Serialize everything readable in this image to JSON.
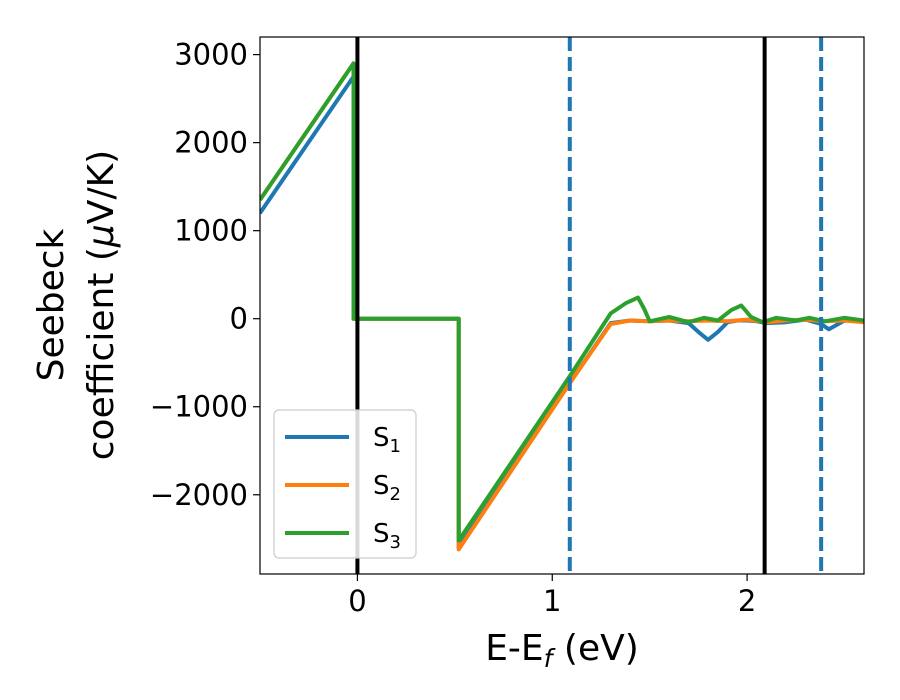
{
  "chart_data": {
    "type": "line",
    "title": "",
    "xlabel": "E-E",
    "xlabel_sub": "f",
    "xlabel_unit": " (eV)",
    "ylabel_line1": "Seebeck",
    "ylabel_line2": "coefficient  (",
    "ylabel_mu": "μ",
    "ylabel_unit": "V/K)",
    "xlim": [
      -0.5,
      2.6
    ],
    "ylim": [
      -2900,
      3200
    ],
    "xticks": [
      0,
      1,
      2
    ],
    "xtick_labels": [
      "0",
      "1",
      "2"
    ],
    "yticks": [
      3000,
      2000,
      1000,
      0,
      -1000,
      -2000
    ],
    "ytick_labels": [
      "3000",
      "2000",
      "1000",
      "0",
      "−1000",
      "−2000"
    ],
    "grid": false,
    "legend_position": "lower-left",
    "vlines": [
      {
        "x": 0.0,
        "style": "solid",
        "color": "#000000"
      },
      {
        "x": 2.09,
        "style": "solid",
        "color": "#000000"
      },
      {
        "x": 1.09,
        "style": "dashed",
        "color": "#1f77b4"
      },
      {
        "x": 2.38,
        "style": "dashed",
        "color": "#1f77b4"
      }
    ],
    "series": [
      {
        "name": "S",
        "sub": "1",
        "color": "#1f77b4",
        "x": [
          -0.5,
          -0.02,
          -0.02,
          0.52,
          0.52,
          1.1,
          1.3,
          1.4,
          1.5,
          1.6,
          1.7,
          1.75,
          1.8,
          1.85,
          1.9,
          1.95,
          2.0,
          2.05,
          2.1,
          2.2,
          2.3,
          2.38,
          2.42,
          2.5,
          2.6
        ],
        "y": [
          1200,
          2750,
          0,
          0,
          -2600,
          -700,
          -50,
          -20,
          -30,
          -20,
          -50,
          -150,
          -240,
          -150,
          -40,
          -20,
          -20,
          -30,
          -50,
          -40,
          -10,
          -60,
          -120,
          -20,
          -30
        ]
      },
      {
        "name": "S",
        "sub": "2",
        "color": "#ff7f0e",
        "x": [
          -0.5,
          -0.02,
          -0.02,
          0.52,
          0.52,
          1.1,
          1.3,
          1.4,
          1.5,
          1.6,
          1.7,
          1.8,
          1.9,
          2.0,
          2.1,
          2.2,
          2.3,
          2.4,
          2.5,
          2.6
        ],
        "y": [
          1350,
          2900,
          0,
          0,
          -2620,
          -700,
          -60,
          -20,
          -30,
          -20,
          -30,
          -20,
          -30,
          -10,
          -40,
          -20,
          -10,
          -30,
          -20,
          -40
        ]
      },
      {
        "name": "S",
        "sub": "3",
        "color": "#2ca02c",
        "x": [
          -0.5,
          -0.02,
          -0.02,
          0.52,
          0.52,
          1.1,
          1.3,
          1.38,
          1.44,
          1.47,
          1.5,
          1.6,
          1.7,
          1.78,
          1.85,
          1.92,
          1.97,
          2.02,
          2.08,
          2.15,
          2.25,
          2.32,
          2.4,
          2.5,
          2.6
        ],
        "y": [
          1350,
          2900,
          0,
          0,
          -2520,
          -620,
          60,
          180,
          240,
          120,
          -30,
          20,
          -40,
          10,
          -20,
          100,
          150,
          20,
          -40,
          10,
          -20,
          10,
          -30,
          10,
          -20
        ]
      }
    ]
  }
}
